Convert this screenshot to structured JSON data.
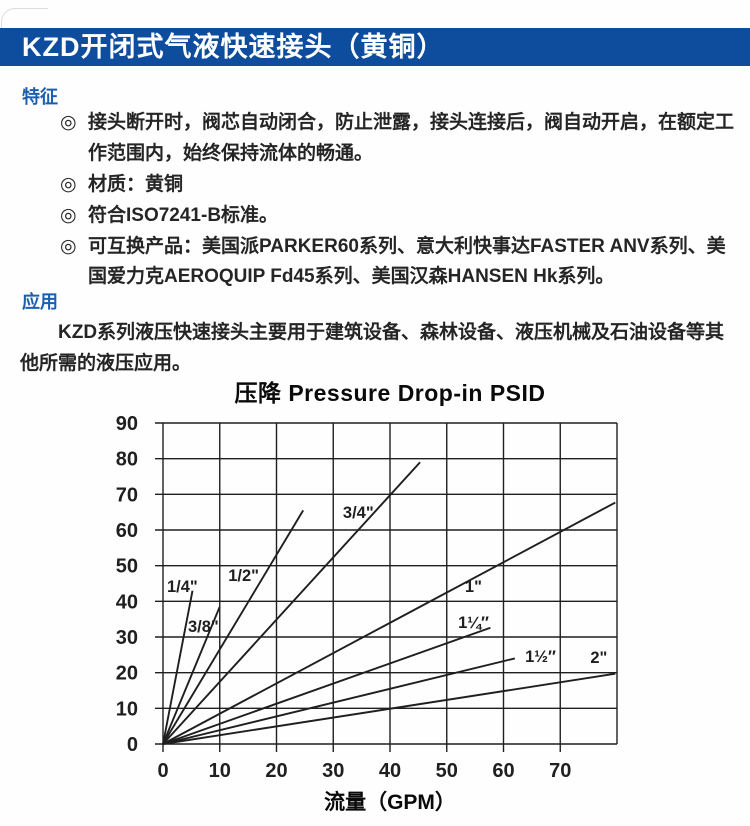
{
  "page": {
    "banner_title": "KZD开闭式气液快速接头（黄铜）"
  },
  "features": {
    "heading": "特征",
    "bullet_symbol": "◎",
    "items": [
      "接头断开时，阀芯自动闭合，防止泄露，接头连接后，阀自动开启，在额定工作范围内，始终保持流体的畅通。",
      "材质：黄铜",
      "符合ISO7241-B标准。",
      "可互换产品：美国派PARKER60系列、意大利快事达FASTER ANV系列、美国爱力克AEROQUIP Fd45系列、美国汉森HANSEN Hk系列。"
    ]
  },
  "application": {
    "heading": "应用",
    "text": "KZD系列液压快速接头主要用于建筑设备、森林设备、液压机械及石油设备等其他所需的液压应用。"
  },
  "colors": {
    "banner_blue": "#0e4c9d",
    "heading_blue": "#1c5fb0",
    "chart_ink": "#1f1f1f"
  },
  "chart_data": {
    "type": "line",
    "title": "压降 Pressure Drop-in PSID",
    "xlabel": "流量（GPM）",
    "ylabel": "",
    "xlim": [
      0,
      80
    ],
    "ylim": [
      0,
      90
    ],
    "x_ticks": [
      0,
      10,
      20,
      30,
      40,
      50,
      60,
      70
    ],
    "y_ticks": [
      0,
      10,
      20,
      30,
      40,
      50,
      60,
      70,
      80,
      90
    ],
    "grid": true,
    "legend_position": "inline-labels",
    "series": [
      {
        "name": "1/4\"",
        "points": [
          [
            0,
            0
          ],
          [
            5.2,
            43
          ]
        ],
        "label_pos": [
          0.7,
          42.6
        ]
      },
      {
        "name": "3/8\"",
        "points": [
          [
            0,
            0
          ],
          [
            10,
            38.5
          ]
        ],
        "label_pos": [
          4.4,
          31.4
        ]
      },
      {
        "name": "1/2\"",
        "points": [
          [
            0,
            0
          ],
          [
            24.7,
            65.5
          ]
        ],
        "label_pos": [
          11.5,
          45.7
        ]
      },
      {
        "name": "3/4\"",
        "points": [
          [
            0,
            0
          ],
          [
            45.3,
            79
          ]
        ],
        "label_pos": [
          31.7,
          63.4
        ]
      },
      {
        "name": "1\"",
        "points": [
          [
            0,
            0
          ],
          [
            79.7,
            67.7
          ]
        ],
        "label_pos": [
          53.2,
          42.6
        ]
      },
      {
        "name": "1¼″",
        "points": [
          [
            0,
            0
          ],
          [
            57.7,
            32.6
          ]
        ],
        "label_pos": [
          52.0,
          32.5
        ]
      },
      {
        "name": "1½″",
        "points": [
          [
            0,
            0
          ],
          [
            62,
            24
          ]
        ],
        "label_pos": [
          63.8,
          23.0
        ]
      },
      {
        "name": "2\"",
        "points": [
          [
            0,
            0
          ],
          [
            79.7,
            19.7
          ]
        ],
        "label_pos": [
          75.3,
          22.7
        ]
      }
    ]
  }
}
